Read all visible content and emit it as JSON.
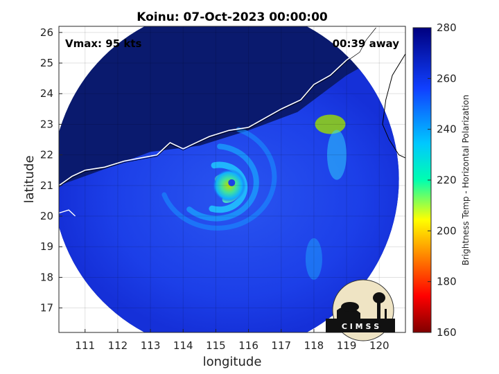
{
  "title": "Koinu: 07-Oct-2023 00:00:00",
  "vmax_label": "Vmax: 95 kts",
  "time_label": "00:39 away",
  "xlabel": "longitude",
  "ylabel": "latitude",
  "colorbar_label": "Brightness Temp - Horizontal Polarization",
  "logo_text": "C I M S S",
  "colors": {
    "background_cold": "#0a1a6e",
    "swath_base": "#1a3ce6",
    "coast": "#ffffff"
  },
  "chart_data": {
    "type": "heatmap",
    "xlim": [
      110.2,
      120.8
    ],
    "ylim": [
      16.2,
      26.2
    ],
    "x_ticks": [
      111,
      112,
      113,
      114,
      115,
      116,
      117,
      118,
      119,
      120
    ],
    "y_ticks": [
      17,
      18,
      19,
      20,
      21,
      22,
      23,
      24,
      25,
      26
    ],
    "x_tick_labels": [
      "111",
      "112",
      "113",
      "114",
      "115",
      "116",
      "117",
      "118",
      "119",
      "120"
    ],
    "y_tick_labels": [
      "17",
      "18",
      "19",
      "20",
      "21",
      "22",
      "23",
      "24",
      "25",
      "26"
    ],
    "grid": true,
    "colorbar": {
      "min": 160,
      "max": 280,
      "ticks": [
        160,
        180,
        200,
        220,
        240,
        260,
        280
      ],
      "tick_labels": [
        "160",
        "180",
        "200",
        "220",
        "240",
        "260",
        "280"
      ],
      "colormap": "jet"
    },
    "storm_center": {
      "lon": 115.4,
      "lat": 21.0
    },
    "swath_center": {
      "lon": 115.3,
      "lat": 21.2
    }
  }
}
